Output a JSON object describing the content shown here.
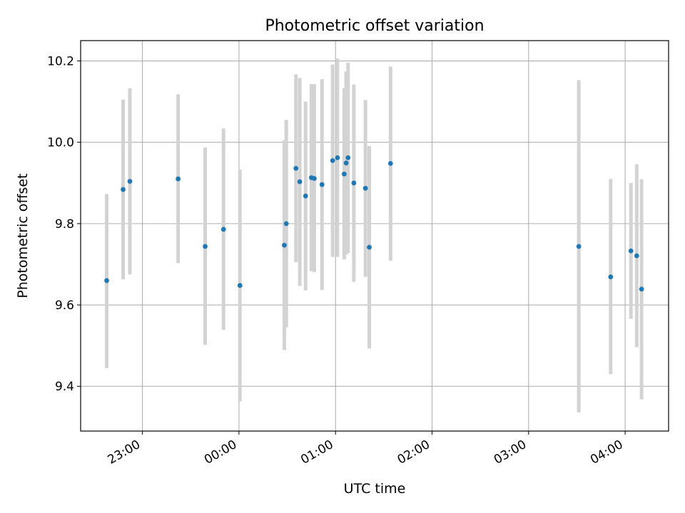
{
  "chart_data": {
    "type": "scatter",
    "title": "Photometric offset variation",
    "xlabel": "UTC time",
    "ylabel": "Photometric offset",
    "grid": true,
    "x_unit": "time of day (UTC), hours after midnight",
    "xlim": [
      -1.64,
      4.45
    ],
    "ylim": [
      9.29,
      10.25
    ],
    "xticks": [
      {
        "value": -1,
        "label": "23:00"
      },
      {
        "value": 0,
        "label": "00:00"
      },
      {
        "value": 1,
        "label": "01:00"
      },
      {
        "value": 2,
        "label": "02:00"
      },
      {
        "value": 3,
        "label": "03:00"
      },
      {
        "value": 4,
        "label": "04:00"
      }
    ],
    "yticks": [
      {
        "value": 9.4,
        "label": "9.4"
      },
      {
        "value": 9.6,
        "label": "9.6"
      },
      {
        "value": 9.8,
        "label": "9.8"
      },
      {
        "value": 10.0,
        "label": "10.0"
      },
      {
        "value": 10.2,
        "label": "10.2"
      }
    ],
    "marker_color": "#1f77b4",
    "errorbar_color": "#d3d3d3",
    "series": [
      {
        "points": [
          {
            "x": -1.37,
            "y": 9.66,
            "ylo": 9.445,
            "yhi": 9.873
          },
          {
            "x": -1.2,
            "y": 9.884,
            "ylo": 9.663,
            "yhi": 10.105
          },
          {
            "x": -1.13,
            "y": 9.904,
            "ylo": 9.675,
            "yhi": 10.133
          },
          {
            "x": -0.63,
            "y": 9.91,
            "ylo": 9.703,
            "yhi": 10.118
          },
          {
            "x": -0.35,
            "y": 9.744,
            "ylo": 9.502,
            "yhi": 9.987
          },
          {
            "x": -0.16,
            "y": 9.786,
            "ylo": 9.539,
            "yhi": 10.034
          },
          {
            "x": 0.01,
            "y": 9.648,
            "ylo": 9.363,
            "yhi": 9.933
          },
          {
            "x": 0.47,
            "y": 9.747,
            "ylo": 9.489,
            "yhi": 10.005
          },
          {
            "x": 0.49,
            "y": 9.8,
            "ylo": 9.545,
            "yhi": 10.055
          },
          {
            "x": 0.59,
            "y": 9.936,
            "ylo": 9.705,
            "yhi": 10.167
          },
          {
            "x": 0.63,
            "y": 9.903,
            "ylo": 9.647,
            "yhi": 10.158
          },
          {
            "x": 0.69,
            "y": 9.868,
            "ylo": 9.636,
            "yhi": 10.1
          },
          {
            "x": 0.75,
            "y": 9.913,
            "ylo": 9.683,
            "yhi": 10.143
          },
          {
            "x": 0.78,
            "y": 9.911,
            "ylo": 9.681,
            "yhi": 10.143
          },
          {
            "x": 0.86,
            "y": 9.896,
            "ylo": 9.637,
            "yhi": 10.155
          },
          {
            "x": 0.97,
            "y": 9.955,
            "ylo": 9.718,
            "yhi": 10.191
          },
          {
            "x": 1.02,
            "y": 9.962,
            "ylo": 9.718,
            "yhi": 10.206
          },
          {
            "x": 1.09,
            "y": 9.922,
            "ylo": 9.712,
            "yhi": 10.133
          },
          {
            "x": 1.11,
            "y": 9.949,
            "ylo": 9.724,
            "yhi": 10.174
          },
          {
            "x": 1.13,
            "y": 9.962,
            "ylo": 9.728,
            "yhi": 10.196
          },
          {
            "x": 1.19,
            "y": 9.9,
            "ylo": 9.657,
            "yhi": 10.142
          },
          {
            "x": 1.31,
            "y": 9.887,
            "ylo": 9.669,
            "yhi": 10.104
          },
          {
            "x": 1.35,
            "y": 9.742,
            "ylo": 9.493,
            "yhi": 9.991
          },
          {
            "x": 1.57,
            "y": 9.948,
            "ylo": 9.709,
            "yhi": 10.186
          },
          {
            "x": 3.52,
            "y": 9.744,
            "ylo": 9.336,
            "yhi": 10.153
          },
          {
            "x": 3.85,
            "y": 9.669,
            "ylo": 9.43,
            "yhi": 9.91
          },
          {
            "x": 4.06,
            "y": 9.733,
            "ylo": 9.566,
            "yhi": 9.9
          },
          {
            "x": 4.12,
            "y": 9.721,
            "ylo": 9.496,
            "yhi": 9.946
          },
          {
            "x": 4.17,
            "y": 9.639,
            "ylo": 9.368,
            "yhi": 9.909
          }
        ]
      }
    ]
  }
}
